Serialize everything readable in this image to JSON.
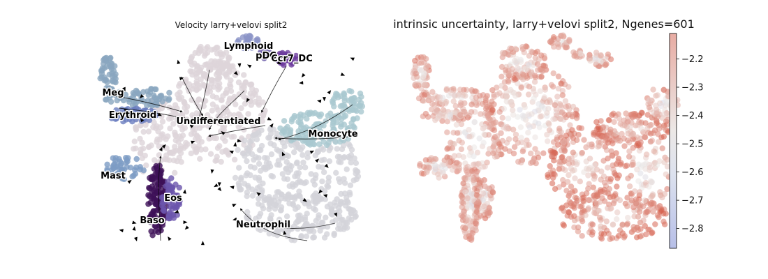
{
  "chart_data": [
    {
      "type": "scatter",
      "title": "Velocity larry+velovi split2",
      "overlay": "streamlines",
      "point_color": "#dcd3d9",
      "clusters": [
        {
          "name": "Lymphoid",
          "color": "#8b94c7"
        },
        {
          "name": "pDC",
          "color": "#6a5ba8"
        },
        {
          "name": "Ccr7_DC",
          "color": "#6d3c9e"
        },
        {
          "name": "Meg",
          "color": "#8aa6bf"
        },
        {
          "name": "Erythroid",
          "color": "#6a7dbf"
        },
        {
          "name": "Undifferentiated",
          "color": "#ddd5da"
        },
        {
          "name": "Monocyte",
          "color": "#a9c8cf"
        },
        {
          "name": "Mast",
          "color": "#7d9cc4"
        },
        {
          "name": "Eos",
          "color": "#6b55ad"
        },
        {
          "name": "Baso",
          "color": "#3d1058"
        },
        {
          "name": "Neutrophil",
          "color": "#d3d3da"
        }
      ]
    },
    {
      "type": "scatter",
      "title": "intrinsic uncertainty, larry+velovi split2, Ngenes=601",
      "colorbar": {
        "ticks": [
          -2.2,
          -2.3,
          -2.4,
          -2.5,
          -2.6,
          -2.7,
          -2.8
        ],
        "tick_labels": [
          "−2.2",
          "−2.3",
          "−2.4",
          "−2.5",
          "−2.6",
          "−2.7",
          "−2.8"
        ],
        "range": [
          -2.87,
          -2.11
        ],
        "colormap": "coolwarm",
        "low_color": "#b7bfe8",
        "high_color": "#e8aca3"
      }
    }
  ]
}
